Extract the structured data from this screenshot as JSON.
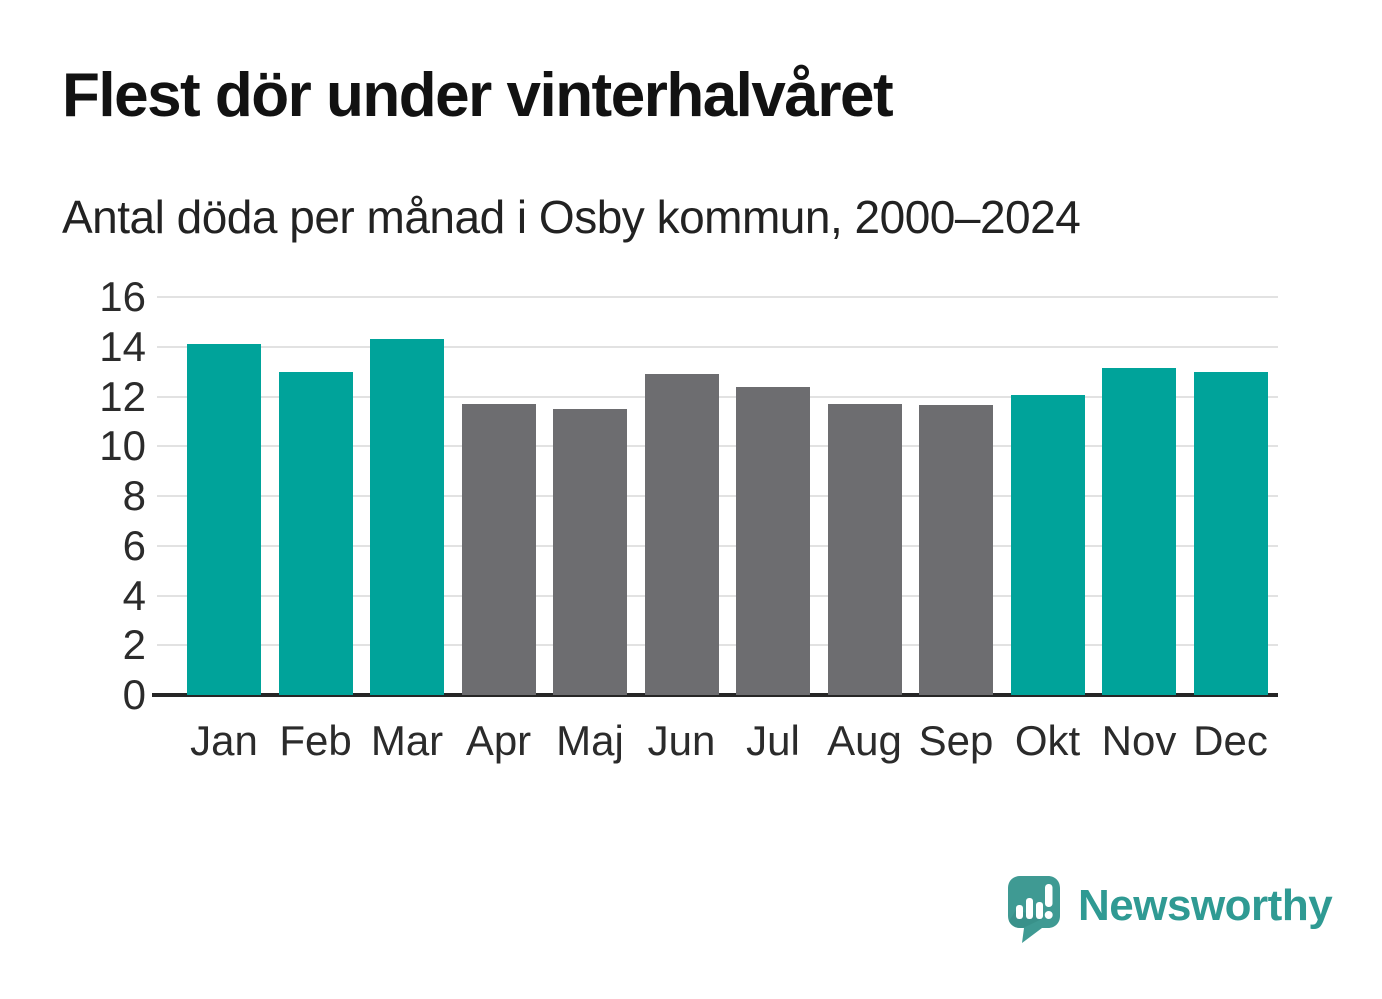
{
  "header": {
    "title": "Flest dör under vinterhalvåret",
    "subtitle": "Antal döda per månad i Osby kommun, 2000–2024"
  },
  "chart_data": {
    "type": "bar",
    "title": "Flest dör under vinterhalvåret",
    "subtitle": "Antal döda per månad i Osby kommun, 2000–2024",
    "categories": [
      "Jan",
      "Feb",
      "Mar",
      "Apr",
      "Maj",
      "Jun",
      "Jul",
      "Aug",
      "Sep",
      "Okt",
      "Nov",
      "Dec"
    ],
    "values": [
      14.1,
      13.0,
      14.3,
      11.7,
      11.5,
      12.9,
      12.4,
      11.7,
      11.65,
      12.05,
      13.15,
      13.0
    ],
    "bar_color_keys": [
      "winter",
      "winter",
      "winter",
      "summer",
      "summer",
      "summer",
      "summer",
      "summer",
      "summer",
      "winter",
      "winter",
      "winter"
    ],
    "palette": {
      "winter": "#00a39a",
      "summer": "#6d6d70"
    },
    "xlabel": "",
    "ylabel": "",
    "ylim": [
      0,
      16
    ],
    "yticks": [
      0,
      2,
      4,
      6,
      8,
      10,
      12,
      14,
      16
    ],
    "grid": true,
    "legend": false,
    "gridline_color": "#e2e2e2",
    "axis_color": "#262626"
  },
  "footer": {
    "brand": "Newsworthy",
    "logo_icon": "bar-chart-speech-bubble-icon",
    "brand_color": "#2f9a93",
    "logo_fill": "#3f9a93"
  }
}
